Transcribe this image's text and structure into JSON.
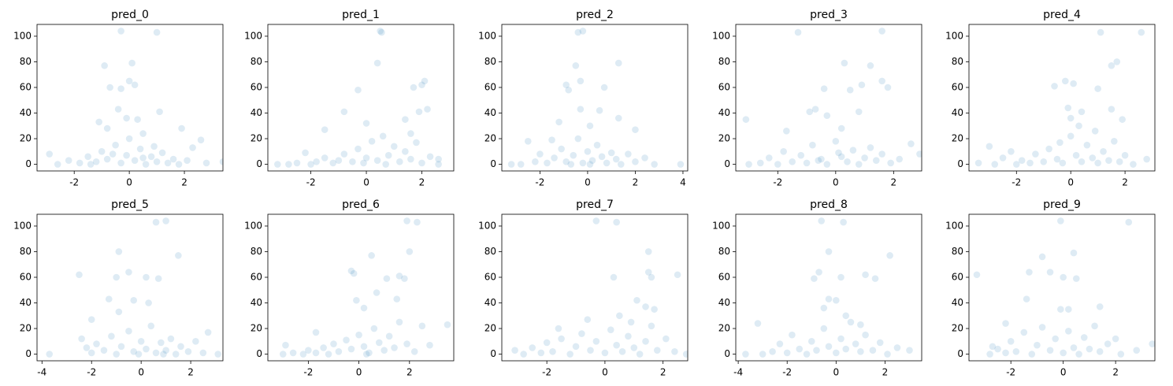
{
  "chart_data": [
    {
      "type": "scatter",
      "title": "pred_0",
      "color": "#1f77b4",
      "alpha": 0.15,
      "x": [
        -0.3,
        1.0,
        -0.9,
        0.1,
        -0.7,
        -0.3,
        0,
        0.2,
        -0.4,
        1.1,
        -0.1,
        0.3,
        -1.1,
        -0.8,
        1.9,
        0.5,
        2.6,
        -2.9,
        3.4,
        -2.6,
        -2.2,
        -1.8,
        -1.5,
        -1.2,
        -1,
        -0.8,
        -0.5,
        -0.3,
        -0.1,
        0,
        0.2,
        0.4,
        0.6,
        0.8,
        1,
        1.2,
        1.4,
        1.6,
        1.8,
        2.1,
        2.3,
        2.8,
        -0.6,
        0.9,
        -1.4,
        0.5
      ],
      "y": [
        104,
        103,
        77,
        79,
        60,
        59,
        65,
        62,
        43,
        41,
        36,
        35,
        33,
        28,
        28,
        24,
        19,
        8,
        2,
        0,
        3,
        1,
        6,
        2,
        10,
        4,
        15,
        1,
        7,
        20,
        3,
        12,
        0,
        6,
        2,
        9,
        1,
        4,
        0,
        3,
        13,
        1,
        8,
        14,
        0,
        5
      ],
      "xlim": [
        -3.35,
        3.4
      ],
      "xticks": [
        -2,
        0,
        2
      ],
      "ylim": [
        -5.2,
        109.2
      ],
      "yticks": [
        0,
        20,
        40,
        60,
        80,
        100
      ]
    },
    {
      "type": "scatter",
      "title": "pred_1",
      "color": "#1f77b4",
      "alpha": 0.15,
      "x": [
        0.5,
        0.55,
        0.4,
        2.1,
        2.0,
        1.7,
        -0.3,
        -0.8,
        2.2,
        1.9,
        0.0,
        1.4,
        -1.5,
        1.6,
        3.3,
        2.6,
        -3.2,
        -2.8,
        -2.5,
        -2.2,
        -2,
        -1.8,
        -1.5,
        -1.2,
        -1,
        -0.8,
        -0.5,
        -0.3,
        0,
        0.2,
        0.4,
        0.6,
        0.8,
        1,
        1.2,
        1.4,
        1.6,
        1.8,
        2,
        2.3,
        2.6,
        -0.1,
        0.7
      ],
      "y": [
        104,
        103,
        79,
        65,
        62,
        60,
        58,
        41,
        43,
        41,
        32,
        35,
        27,
        24,
        11,
        4,
        0,
        0,
        1,
        9,
        0,
        2,
        5,
        1,
        3,
        8,
        2,
        12,
        5,
        18,
        3,
        22,
        7,
        14,
        2,
        10,
        4,
        17,
        1,
        6,
        0,
        1,
        0
      ],
      "xlim": [
        -3.55,
        3.15
      ],
      "xticks": [
        -2,
        0,
        2
      ],
      "ylim": [
        -5.2,
        109.2
      ],
      "yticks": [
        0,
        20,
        40,
        60,
        80,
        100
      ]
    },
    {
      "type": "scatter",
      "title": "pred_2",
      "color": "#1f77b4",
      "alpha": 0.15,
      "x": [
        -0.4,
        -0.2,
        -0.5,
        1.3,
        -0.3,
        -0.9,
        0.7,
        -0.8,
        -0.3,
        0.5,
        1.3,
        -1.2,
        0.1,
        2.0,
        -1.5,
        -2.5,
        3.9,
        -3.2,
        -2.8,
        -2.2,
        -2,
        -1.7,
        -1.4,
        -1.1,
        -0.9,
        -0.6,
        -0.4,
        -0.2,
        0,
        0.2,
        0.4,
        0.6,
        0.8,
        1,
        1.2,
        1.4,
        1.7,
        2,
        2.4,
        2.8,
        0.1,
        -0.7
      ],
      "y": [
        103,
        104,
        77,
        79,
        65,
        62,
        60,
        58,
        43,
        42,
        36,
        33,
        30,
        27,
        19,
        18,
        0,
        0,
        0,
        2,
        8,
        1,
        5,
        12,
        2,
        7,
        20,
        1,
        10,
        3,
        15,
        6,
        1,
        9,
        4,
        0,
        8,
        2,
        5,
        0,
        0,
        0
      ],
      "xlim": [
        -3.6,
        4.2
      ],
      "xticks": [
        -2,
        0,
        2,
        4
      ],
      "ylim": [
        -5.2,
        109.2
      ],
      "yticks": [
        0,
        20,
        40,
        60,
        80,
        100
      ]
    },
    {
      "type": "scatter",
      "title": "pred_3",
      "color": "#1f77b4",
      "alpha": 0.15,
      "x": [
        -1.3,
        1.6,
        0.3,
        1.2,
        0.9,
        1.6,
        1.8,
        -0.4,
        0.5,
        -0.7,
        -0.9,
        0.8,
        -0.3,
        -3.1,
        -1.7,
        0.2,
        2.9,
        -3.0,
        -2.6,
        -2.3,
        -2,
        -1.8,
        -1.5,
        -1.2,
        -1,
        -0.8,
        -0.5,
        -0.3,
        0,
        0.2,
        0.4,
        0.6,
        0.8,
        1,
        1.2,
        1.4,
        1.6,
        1.9,
        2.2,
        2.6,
        0.1,
        -0.6
      ],
      "y": [
        103,
        104,
        79,
        77,
        62,
        65,
        60,
        59,
        58,
        43,
        41,
        41,
        38,
        35,
        26,
        28,
        8,
        0,
        1,
        5,
        0,
        10,
        2,
        7,
        1,
        15,
        4,
        0,
        18,
        6,
        2,
        11,
        0,
        5,
        13,
        3,
        8,
        1,
        4,
        16,
        9,
        3
      ],
      "xlim": [
        -3.45,
        2.97
      ],
      "xticks": [
        -2,
        0,
        2
      ],
      "ylim": [
        -5.2,
        109.2
      ],
      "yticks": [
        0,
        20,
        40,
        60,
        80,
        100
      ]
    },
    {
      "type": "scatter",
      "title": "pred_4",
      "color": "#1f77b4",
      "alpha": 0.15,
      "x": [
        1.1,
        2.6,
        1.5,
        1.7,
        -0.2,
        0.1,
        -0.6,
        1.0,
        -0.1,
        0.4,
        1.5,
        0.0,
        1.9,
        -3.0,
        -2.2,
        -3.4,
        2.8,
        -2.8,
        -2.5,
        -2,
        -1.8,
        -1.5,
        -1.3,
        -1,
        -0.8,
        -0.5,
        -0.3,
        0,
        0.2,
        0.4,
        0.6,
        0.8,
        1,
        1.2,
        1.4,
        1.6,
        1.8,
        2,
        2.3,
        0.9,
        -0.4,
        0.3
      ],
      "y": [
        103,
        103,
        77,
        80,
        65,
        63,
        61,
        59,
        44,
        41,
        43,
        36,
        35,
        14,
        10,
        1,
        4,
        0,
        5,
        0,
        3,
        1,
        8,
        2,
        12,
        4,
        1,
        22,
        7,
        2,
        15,
        5,
        1,
        10,
        3,
        18,
        2,
        7,
        0,
        26,
        17,
        30
      ],
      "xlim": [
        -3.75,
        3.1
      ],
      "xticks": [
        -2,
        0,
        2
      ],
      "ylim": [
        -5.2,
        109.2
      ],
      "yticks": [
        0,
        20,
        40,
        60,
        80,
        100
      ]
    },
    {
      "type": "scatter",
      "title": "pred_5",
      "color": "#1f77b4",
      "alpha": 0.15,
      "x": [
        0.6,
        1.0,
        -0.9,
        1.5,
        -1.0,
        -0.5,
        0.2,
        0.7,
        -1.3,
        -0.3,
        0.3,
        -0.9,
        -2.5,
        -3.7,
        3.1,
        2.7,
        -2.0,
        -2.4,
        -2.2,
        -2,
        -1.8,
        -1.5,
        -1.2,
        -1,
        -0.8,
        -0.5,
        -0.3,
        0,
        0.2,
        0.4,
        0.6,
        0.8,
        1,
        1.2,
        1.4,
        1.6,
        1.9,
        2.2,
        2.5,
        -0.1,
        0.9
      ],
      "y": [
        103,
        104,
        80,
        77,
        60,
        64,
        60,
        59,
        43,
        42,
        40,
        33,
        62,
        0,
        0,
        17,
        27,
        12,
        5,
        1,
        8,
        3,
        14,
        0,
        6,
        18,
        2,
        10,
        4,
        22,
        1,
        9,
        3,
        12,
        0,
        6,
        2,
        10,
        1,
        0,
        0
      ],
      "xlim": [
        -4.2,
        3.3
      ],
      "xticks": [
        -4,
        -2,
        0,
        2
      ],
      "ylim": [
        -5.2,
        109.2
      ],
      "yticks": [
        0,
        20,
        40,
        60,
        80,
        100
      ]
    },
    {
      "type": "scatter",
      "title": "pred_6",
      "color": "#1f77b4",
      "alpha": 0.15,
      "x": [
        1.9,
        2.3,
        2.0,
        0.5,
        -0.3,
        -0.2,
        1.6,
        1.1,
        1.8,
        0.7,
        -0.1,
        1.5,
        0.2,
        2.5,
        3.5,
        -1.7,
        -2.9,
        -3.0,
        -2.6,
        -2.2,
        -2,
        -1.7,
        -1.4,
        -1.2,
        -1,
        -0.8,
        -0.5,
        -0.3,
        0,
        0.2,
        0.4,
        0.6,
        0.8,
        1,
        1.2,
        1.4,
        1.6,
        1.9,
        2.2,
        2.8,
        0.3
      ],
      "y": [
        104,
        103,
        80,
        77,
        65,
        63,
        61,
        59,
        59,
        48,
        42,
        43,
        36,
        22,
        23,
        17,
        7,
        0,
        1,
        0,
        3,
        1,
        5,
        0,
        8,
        2,
        11,
        4,
        15,
        6,
        1,
        20,
        9,
        3,
        14,
        5,
        25,
        8,
        2,
        7,
        0
      ],
      "xlim": [
        -3.6,
        3.75
      ],
      "xticks": [
        -2,
        0,
        2
      ],
      "ylim": [
        -5.2,
        109.2
      ],
      "yticks": [
        0,
        20,
        40,
        60,
        80,
        100
      ]
    },
    {
      "type": "scatter",
      "title": "pred_7",
      "color": "#1f77b4",
      "alpha": 0.15,
      "x": [
        -0.3,
        0.4,
        1.5,
        1.5,
        1.6,
        0.3,
        1.1,
        1.4,
        1.7,
        2.5,
        0.5,
        -0.6,
        -1.6,
        -3.1,
        2.8,
        -2.8,
        -2.5,
        -2.2,
        -2,
        -1.8,
        -1.5,
        -1.2,
        -1,
        -0.8,
        -0.5,
        -0.3,
        0,
        0.2,
        0.4,
        0.6,
        0.8,
        1,
        1.2,
        1.4,
        1.6,
        1.8,
        2.1,
        2.4,
        0.9
      ],
      "y": [
        104,
        103,
        80,
        64,
        60,
        60,
        42,
        37,
        35,
        62,
        30,
        27,
        20,
        3,
        0,
        0,
        5,
        1,
        9,
        2,
        12,
        0,
        6,
        16,
        3,
        10,
        1,
        19,
        7,
        2,
        14,
        5,
        0,
        10,
        22,
        3,
        12,
        2,
        25
      ],
      "xlim": [
        -3.55,
        2.85
      ],
      "xticks": [
        -2,
        0,
        2
      ],
      "ylim": [
        -5.2,
        109.2
      ],
      "yticks": [
        0,
        20,
        40,
        60,
        80,
        100
      ]
    },
    {
      "type": "scatter",
      "title": "pred_8",
      "color": "#1f77b4",
      "alpha": 0.15,
      "x": [
        -0.6,
        0.3,
        -0.3,
        2.2,
        -0.7,
        -0.9,
        0.2,
        1.2,
        1.6,
        -0.3,
        0.0,
        -0.5,
        0.4,
        -3.2,
        -3.7,
        3.0,
        -3,
        -2.6,
        -2.3,
        -2,
        -1.8,
        -1.5,
        -1.2,
        -1,
        -0.8,
        -0.5,
        -0.3,
        0,
        0.2,
        0.4,
        0.6,
        0.8,
        1,
        1.2,
        1.5,
        1.8,
        2.1,
        2.5,
        1.0
      ],
      "y": [
        104,
        103,
        80,
        77,
        64,
        59,
        60,
        62,
        59,
        43,
        42,
        36,
        30,
        24,
        0,
        3,
        0,
        2,
        8,
        1,
        15,
        4,
        0,
        10,
        3,
        20,
        6,
        1,
        12,
        4,
        25,
        8,
        2,
        15,
        3,
        9,
        0,
        5,
        23
      ],
      "xlim": [
        -4.1,
        3.5
      ],
      "xticks": [
        -4,
        -2,
        0,
        2
      ],
      "ylim": [
        -5.2,
        109.2
      ],
      "yticks": [
        0,
        20,
        40,
        60,
        80,
        100
      ]
    },
    {
      "type": "scatter",
      "title": "pred_9",
      "color": "#1f77b4",
      "alpha": 0.15,
      "x": [
        -0.1,
        2.5,
        0.4,
        -0.8,
        -1.3,
        -0.5,
        0.0,
        0.5,
        -0.1,
        0.2,
        -2.7,
        -3.3,
        1.4,
        -1.4,
        3.4,
        -2.2,
        2.0,
        -2.8,
        -2.5,
        -2.2,
        -2,
        -1.8,
        -1.5,
        -1.2,
        -1,
        -0.8,
        -0.5,
        -0.3,
        0,
        0.2,
        0.4,
        0.6,
        0.8,
        1,
        1.2,
        1.4,
        1.7,
        2.2,
        2.8
      ],
      "y": [
        104,
        103,
        79,
        76,
        64,
        64,
        60,
        59,
        35,
        35,
        6,
        62,
        37,
        43,
        8,
        24,
        12,
        0,
        4,
        1,
        10,
        2,
        17,
        0,
        7,
        21,
        3,
        12,
        1,
        18,
        5,
        0,
        13,
        4,
        22,
        2,
        8,
        0,
        3
      ],
      "xlim": [
        -3.6,
        3.5
      ],
      "xticks": [
        -2,
        0,
        2
      ],
      "ylim": [
        -5.2,
        109.2
      ],
      "yticks": [
        0,
        20,
        40,
        60,
        80,
        100
      ]
    }
  ]
}
